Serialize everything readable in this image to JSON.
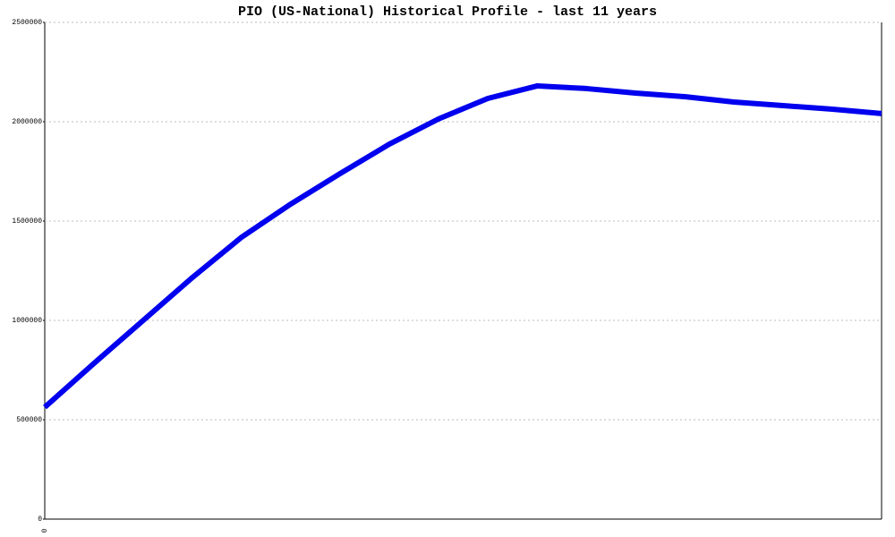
{
  "chart_data": {
    "type": "line",
    "title": "PIO (US-National) Historical Profile - last 11 years",
    "categories": [
      "0",
      null,
      null,
      null,
      null,
      null,
      null,
      null,
      null,
      null,
      null,
      null,
      null,
      null,
      null,
      null,
      null,
      null
    ],
    "values": [
      563000,
      784000,
      1000000,
      1216000,
      1419000,
      1586000,
      1739000,
      1887000,
      2014000,
      2117000,
      2180000,
      2167000,
      2144000,
      2126000,
      2099000,
      2081000,
      2063000,
      2041000
    ],
    "color": "#0000ee",
    "ylim": [
      0,
      2500000
    ],
    "yticks": [
      0,
      500000,
      1000000,
      1500000,
      2000000,
      2500000
    ],
    "grid": true
  }
}
